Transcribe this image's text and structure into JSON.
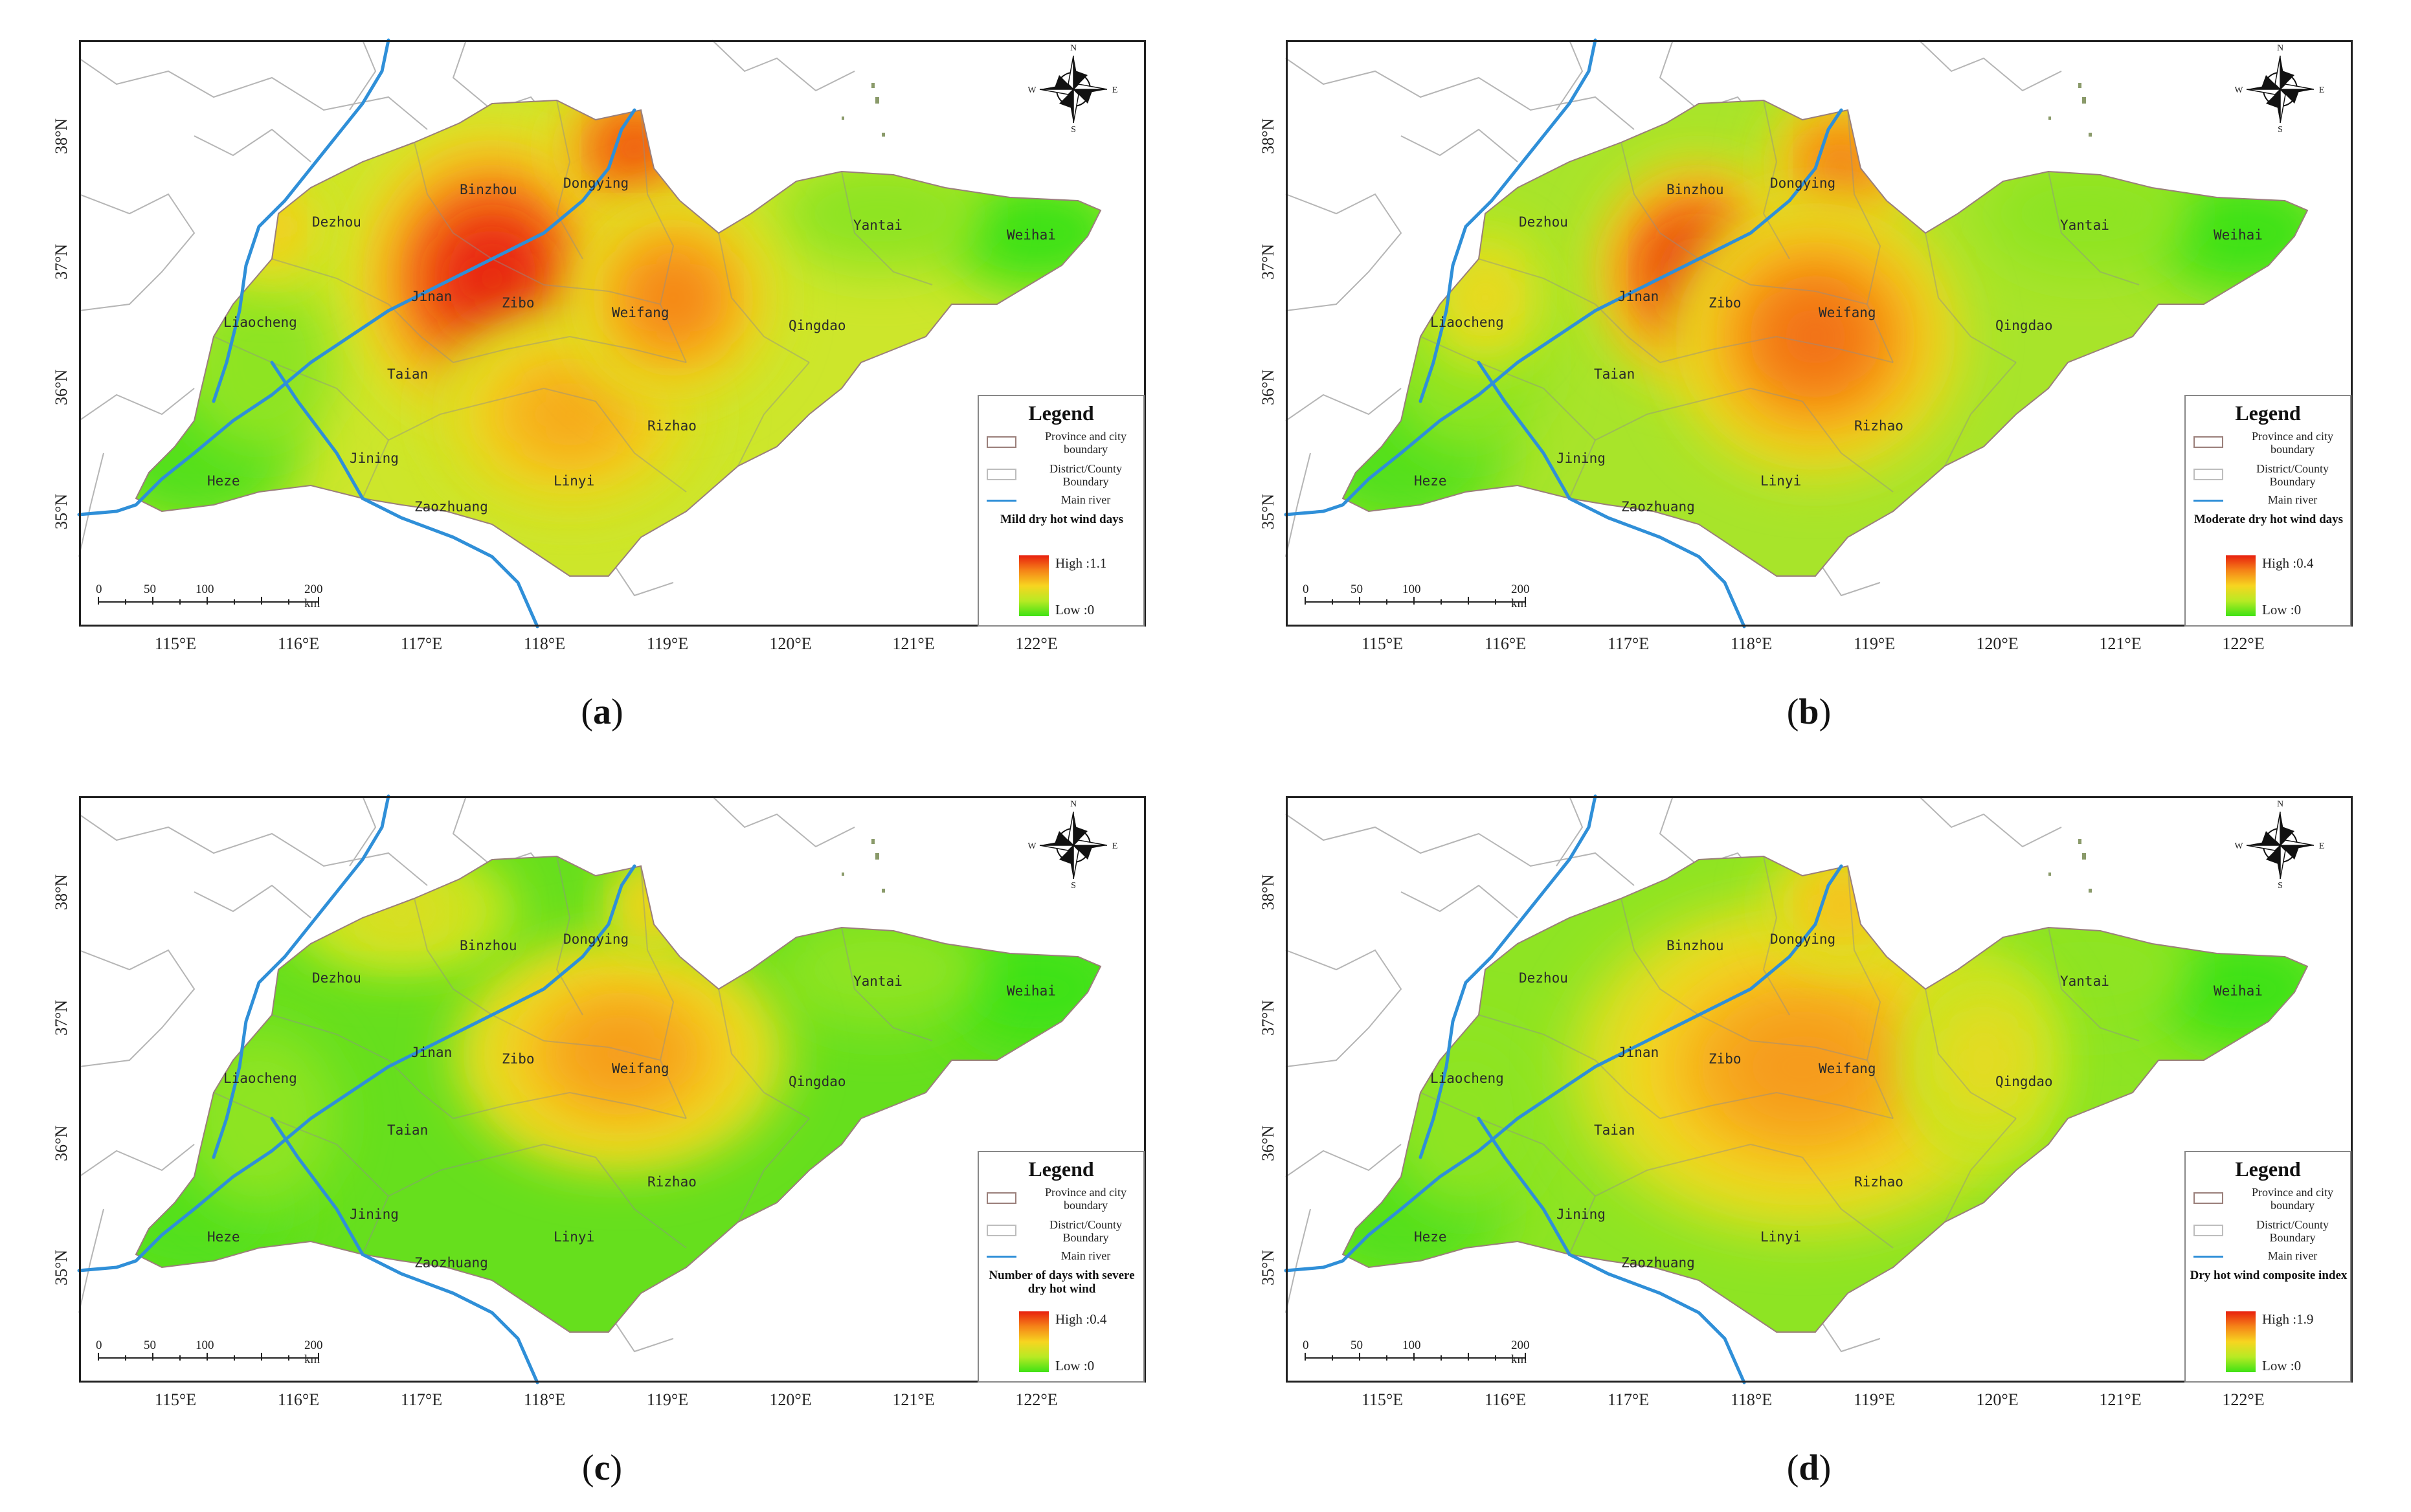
{
  "panels": [
    {
      "id": "a",
      "label": "a",
      "legend_variable": "Mild dry hot wind days",
      "legend_high": "High :1.1",
      "legend_low": "Low :0"
    },
    {
      "id": "b",
      "label": "b",
      "legend_variable": "Moderate dry hot wind days",
      "legend_high": "High :0.4",
      "legend_low": "Low :0"
    },
    {
      "id": "c",
      "label": "c",
      "legend_variable": "Number of days with severe dry hot wind",
      "legend_high": "High :0.4",
      "legend_low": "Low :0"
    },
    {
      "id": "d",
      "label": "d",
      "legend_variable": "Dry hot wind composite index",
      "legend_high": "High :1.9",
      "legend_low": "Low :0"
    }
  ],
  "legend": {
    "title": "Legend",
    "province_boundary": "Province and city boundary",
    "county_boundary": "District/County Boundary",
    "main_river": "Main river"
  },
  "x_ticks": [
    "115°E",
    "116°E",
    "117°E",
    "118°E",
    "119°E",
    "120°E",
    "121°E",
    "122°E"
  ],
  "y_ticks": [
    "38°N",
    "37°N",
    "36°N",
    "35°N"
  ],
  "scale": {
    "ticks": [
      "0",
      "50",
      "100",
      "200 km"
    ]
  },
  "compass": {
    "n": "N",
    "s": "S",
    "e": "E",
    "w": "W"
  },
  "cities": {
    "binzhou": "Binzhou",
    "dongying": "Dongying",
    "dezhou": "Dezhou",
    "weihai": "Weihai",
    "yantai": "Yantai",
    "jinan": "Jinan",
    "zibo": "Zibo",
    "weifang": "Weifang",
    "liaocheng": "Liaocheng",
    "qingdao": "Qingdao",
    "taian": "Taian",
    "rizhao": "Rizhao",
    "jining": "Jining",
    "heze": "Heze",
    "linyi": "Linyi",
    "zaozhuang": "Zaozhuang"
  },
  "colors": {
    "high": "#e8200e",
    "orange": "#f58418",
    "yellow": "#f7d520",
    "lime": "#b7ea24",
    "low": "#3ee214",
    "river": "#2f8fd8",
    "boundary": "#a9a9a9"
  }
}
